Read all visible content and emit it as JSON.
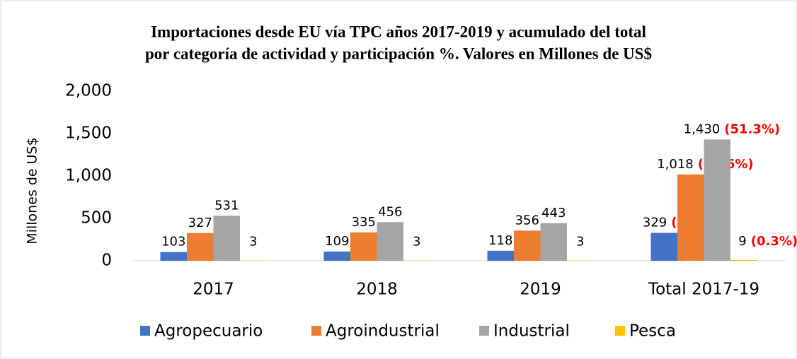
{
  "chart_data": {
    "type": "bar",
    "title": [
      "Importaciones desde EU vía TPC años 2017-2019 y acumulado del total",
      "por categoría de actividad y participación %. Valores en Millones de US$"
    ],
    "y_label": "Millones de US$",
    "categories": [
      "2017",
      "2018",
      "2019",
      "Total 2017-19"
    ],
    "series": [
      {
        "name": "Agropecuario",
        "color": "#4472c4",
        "values": [
          103,
          109,
          118,
          329
        ],
        "value_labels": [
          "103",
          "109",
          "118",
          "329"
        ],
        "share_labels": [
          null,
          null,
          null,
          "(11.8%)"
        ]
      },
      {
        "name": "Agroindustrial",
        "color": "#ed7d31",
        "values": [
          327,
          335,
          356,
          1018
        ],
        "value_labels": [
          "327",
          "335",
          "356",
          "1,018"
        ],
        "share_labels": [
          null,
          null,
          null,
          "(36.6%)"
        ]
      },
      {
        "name": "Industrial",
        "color": "#a5a5a5",
        "values": [
          531,
          456,
          443,
          1430
        ],
        "value_labels": [
          "531",
          "456",
          "443",
          "1,430"
        ],
        "share_labels": [
          null,
          null,
          null,
          "(51.3%)"
        ]
      },
      {
        "name": "Pesca",
        "color": "#ffc000",
        "values": [
          3,
          3,
          3,
          9
        ],
        "value_labels": [
          "3",
          "3",
          "3",
          "9"
        ],
        "share_labels": [
          null,
          null,
          null,
          "(0.3%)"
        ]
      }
    ],
    "ylim": [
      0,
      2000
    ],
    "yticks": [
      0,
      500,
      {
        "value": 1000,
        "label": "1,000"
      },
      {
        "value": 1500,
        "label": "1,500"
      },
      {
        "value": 2000,
        "label": "2,000"
      }
    ],
    "grid": false,
    "legend": "bottom"
  }
}
